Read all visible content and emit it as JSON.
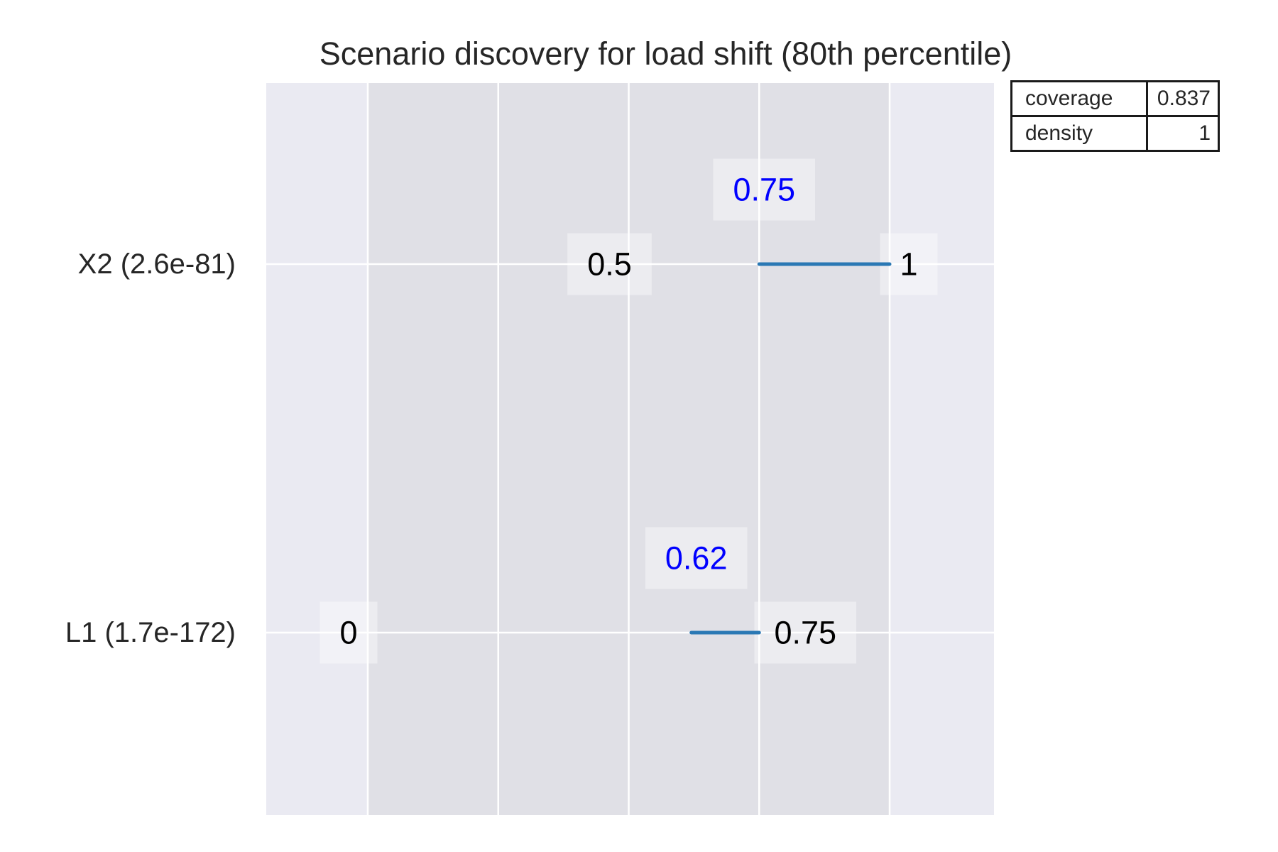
{
  "chart_data": {
    "type": "range",
    "title": "Scenario discovery for load shift (80th percentile)",
    "xlim": [
      0,
      1
    ],
    "grid": true,
    "series_color": "#2a78b4",
    "restricted_color": "#0000ff",
    "rows": [
      {
        "label": "X2 (2.6e-81)",
        "range_min": 0.5,
        "range_max": 1,
        "range_min_label": "0.5",
        "range_max_label": "1",
        "box_min": 0.75,
        "box_max": 1,
        "box_min_label": "0.75"
      },
      {
        "label": "L1 (1.7e-172)",
        "range_min": 0,
        "range_max": 0.75,
        "range_min_label": "0",
        "range_max_label": "0.75",
        "box_min": 0.62,
        "box_max": 0.75,
        "box_min_label": "0.62"
      }
    ],
    "stats_table": [
      {
        "key": "coverage",
        "value": "0.837"
      },
      {
        "key": "density",
        "value": "1"
      }
    ]
  }
}
